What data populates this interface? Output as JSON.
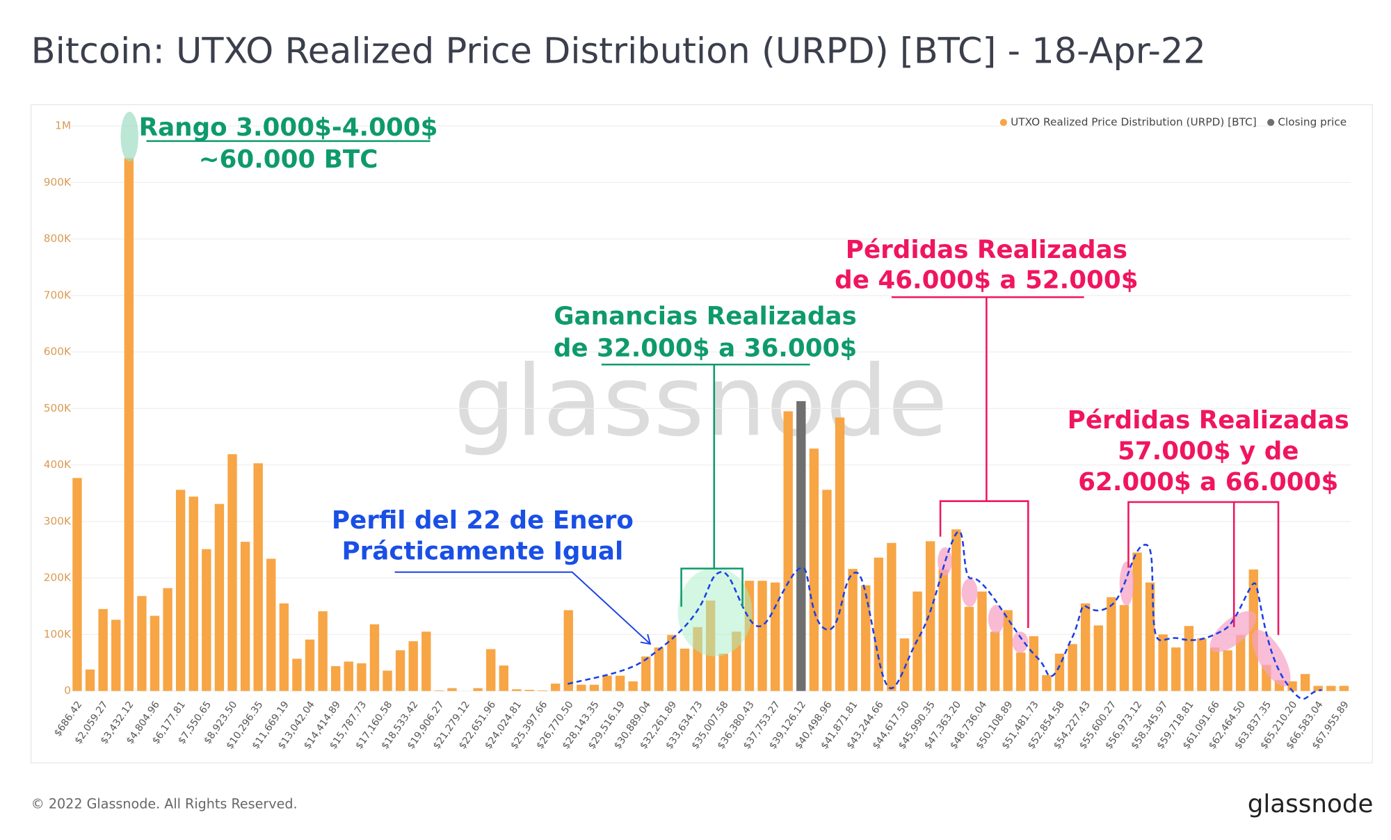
{
  "chart_data": {
    "type": "bar",
    "title": "Bitcoin: UTXO Realized Price Distribution (URPD) [BTC] - 18-Apr-22",
    "categories": [
      "$686.42",
      null,
      "$2,059.27",
      null,
      "$3,432.12",
      null,
      "$4,804.96",
      null,
      "$6,177.81",
      null,
      "$7,550.65",
      null,
      "$8,923.50",
      null,
      "$10,296.35",
      null,
      "$11,669.19",
      null,
      "$13,042.04",
      null,
      "$14,414.89",
      null,
      "$15,787.73",
      null,
      "$17,160.58",
      null,
      "$18,533.42",
      null,
      "$19,906.27",
      null,
      "$21,279.12",
      null,
      "$22,651.96",
      null,
      "$24,024.81",
      null,
      "$25,397.66",
      null,
      "$26,770.50",
      null,
      "$28,143.35",
      null,
      "$29,516.19",
      null,
      "$30,889.04",
      null,
      "$32,261.89",
      null,
      "$33,634.73",
      null,
      "$35,007.58",
      null,
      "$36,380.43",
      null,
      "$37,753.27",
      null,
      "$39,126.12",
      null,
      "$40,498.96",
      null,
      "$41,871.81",
      null,
      "$43,244.66",
      null,
      "$44,617.50",
      null,
      "$45,990.35",
      null,
      "$47,363.20",
      null,
      "$48,736.04",
      null,
      "$50,108.89",
      null,
      "$51,481.73",
      null,
      "$52,854.58",
      null,
      "$54,227.43",
      null,
      "$55,600.27",
      null,
      "$56,973.12",
      null,
      "$58,345.97",
      null,
      "$59,718.81",
      null,
      "$61,091.66",
      null,
      "$62,464.50",
      null,
      "$63,837.35",
      null,
      "$65,210.20",
      null,
      "$66,583.04",
      null,
      "$67,955.89"
    ],
    "series": [
      {
        "name": "UTXO Realized Price Distribution (URPD) [BTC]",
        "color": "#f7a545",
        "values": [
          377000,
          38000,
          145000,
          126000,
          943000,
          168000,
          133000,
          182000,
          356000,
          344000,
          251000,
          331000,
          419000,
          264000,
          403000,
          234000,
          155000,
          57000,
          91000,
          141000,
          44000,
          52000,
          49000,
          118000,
          36000,
          72000,
          88000,
          105000,
          1000,
          5000,
          0,
          5000,
          74000,
          45000,
          3000,
          2000,
          1000,
          13000,
          143000,
          11000,
          11000,
          27000,
          27000,
          17000,
          61000,
          77000,
          99000,
          75000,
          113000,
          160000,
          66000,
          105000,
          195000,
          195000,
          192000,
          495000,
          null,
          429000,
          356000,
          484000,
          216000,
          187000,
          236000,
          262000,
          93000,
          176000,
          265000,
          215000,
          286000,
          149000,
          176000,
          105000,
          143000,
          68000,
          97000,
          28000,
          66000,
          83000,
          155000,
          116000,
          166000,
          152000,
          245000,
          192000,
          100000,
          77000,
          115000,
          93000,
          77000,
          72000,
          99000,
          215000,
          46000,
          19000,
          17000,
          30000,
          9000,
          9000,
          9000
        ]
      },
      {
        "name": "Closing price",
        "color": "#6f6f6f",
        "values": [
          null,
          null,
          null,
          null,
          null,
          null,
          null,
          null,
          null,
          null,
          null,
          null,
          null,
          null,
          null,
          null,
          null,
          null,
          null,
          null,
          null,
          null,
          null,
          null,
          null,
          null,
          null,
          null,
          null,
          null,
          null,
          null,
          null,
          null,
          null,
          null,
          null,
          null,
          null,
          null,
          null,
          null,
          null,
          null,
          null,
          null,
          null,
          null,
          null,
          null,
          null,
          null,
          null,
          null,
          null,
          null,
          513000,
          null,
          null,
          null,
          null,
          null,
          null,
          null,
          null,
          null,
          null,
          null,
          null,
          null,
          null,
          null,
          null,
          null,
          null,
          null,
          null,
          null,
          null,
          null,
          null,
          null,
          null,
          null,
          null,
          null,
          null,
          null,
          null,
          null,
          null,
          null,
          null,
          null,
          null,
          null,
          null,
          null,
          null
        ]
      }
    ],
    "ylim": [
      0,
      1000000
    ],
    "yticks": [
      0,
      {
        "value": 100000,
        "label": "100K"
      },
      {
        "value": 200000,
        "label": "200K"
      },
      {
        "value": 300000,
        "label": "300K"
      },
      {
        "value": 400000,
        "label": "400K"
      },
      {
        "value": 500000,
        "label": "500K"
      },
      {
        "value": 600000,
        "label": "600K"
      },
      {
        "value": 700000,
        "label": "700K"
      },
      {
        "value": 800000,
        "label": "800K"
      },
      {
        "value": 900000,
        "label": "900K"
      },
      {
        "value": 1000000,
        "label": "1M"
      }
    ],
    "grid": true,
    "legend": "top-right",
    "annotations": [
      "Rango 3.000$-4.000$",
      "~60.000 BTC",
      "Ganancias Realizadas",
      "de 32.000$ a 36.000$",
      "Pérdidas Realizadas",
      "de 46.000$ a 52.000$",
      "Pérdidas Realizadas",
      "57.000$ y de",
      "62.000$ a 66.000$",
      "Perfil del 22 de Enero",
      "Prácticamente Igual"
    ]
  },
  "watermark": "glassnode",
  "footer": {
    "copyright": "© 2022 Glassnode. All Rights Reserved.",
    "logo": "glassnode"
  }
}
